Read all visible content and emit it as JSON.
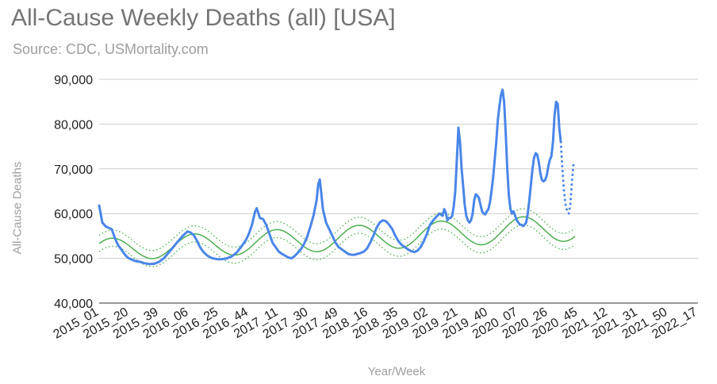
{
  "chart_data": {
    "type": "line",
    "title": "All-Cause Weekly Deaths (all) [USA]",
    "subtitle": "Source: CDC, USMortality.com",
    "xlabel": "Year/Week",
    "ylabel": "All-Cause Deaths",
    "ylim": [
      40000,
      90000
    ],
    "yticks": [
      "40,000",
      "50,000",
      "60,000",
      "70,000",
      "80,000",
      "90,000"
    ],
    "ytick_values": [
      40000,
      50000,
      60000,
      70000,
      80000,
      90000
    ],
    "x_start": "2015_01",
    "x_end": "2022_17",
    "x_tick_labels": [
      "2015_01",
      "2015_20",
      "2015_39",
      "2016_06",
      "2016_25",
      "2016_44",
      "2017_11",
      "2017_30",
      "2017_49",
      "2018_16",
      "2018_35",
      "2019_02",
      "2019_21",
      "2019_40",
      "2020_07",
      "2020_26",
      "2020_45",
      "2021_12",
      "2021_31",
      "2021_50",
      "2022_17"
    ],
    "x_tick_index": [
      0,
      19,
      38,
      57,
      76,
      95,
      114,
      133,
      152,
      171,
      190,
      209,
      228,
      247,
      266,
      285,
      304,
      323,
      342,
      361,
      380
    ],
    "grid": true,
    "legend": "none",
    "colors": {
      "actual": "#4a86e8",
      "baseline": "#4caf50",
      "grid": "#cccccc",
      "axis": "#333333"
    },
    "series": [
      {
        "style": "solid",
        "points": [
          [
            0,
            61800
          ],
          [
            2,
            58000
          ],
          [
            4,
            57200
          ],
          [
            6,
            56800
          ],
          [
            8,
            56500
          ],
          [
            10,
            54500
          ],
          [
            12,
            53000
          ],
          [
            14,
            52000
          ],
          [
            16,
            51000
          ],
          [
            18,
            50200
          ],
          [
            20,
            49800
          ],
          [
            23,
            49400
          ],
          [
            26,
            49200
          ],
          [
            29,
            48900
          ],
          [
            32,
            48700
          ],
          [
            35,
            48800
          ],
          [
            38,
            49200
          ],
          [
            41,
            50000
          ],
          [
            44,
            51200
          ],
          [
            47,
            52500
          ],
          [
            50,
            53800
          ],
          [
            53,
            55000
          ],
          [
            56,
            56000
          ],
          [
            58,
            55800
          ],
          [
            60,
            55200
          ],
          [
            62,
            54000
          ],
          [
            64,
            52500
          ],
          [
            66,
            51500
          ],
          [
            68,
            50800
          ],
          [
            70,
            50300
          ],
          [
            72,
            50000
          ],
          [
            75,
            49800
          ],
          [
            78,
            49800
          ],
          [
            81,
            50000
          ],
          [
            84,
            50400
          ],
          [
            87,
            51200
          ],
          [
            90,
            52500
          ],
          [
            93,
            54000
          ],
          [
            95,
            55500
          ],
          [
            97,
            57500
          ],
          [
            99,
            60500
          ],
          [
            100,
            61200
          ],
          [
            102,
            59000
          ],
          [
            104,
            58800
          ],
          [
            106,
            57500
          ],
          [
            108,
            55500
          ],
          [
            110,
            53500
          ],
          [
            112,
            52500
          ],
          [
            114,
            51500
          ],
          [
            116,
            51000
          ],
          [
            118,
            50600
          ],
          [
            120,
            50200
          ],
          [
            122,
            50000
          ],
          [
            124,
            50500
          ],
          [
            126,
            51200
          ],
          [
            128,
            52000
          ],
          [
            130,
            53200
          ],
          [
            132,
            54800
          ],
          [
            134,
            57000
          ],
          [
            136,
            59500
          ],
          [
            138,
            63000
          ],
          [
            139,
            66500
          ],
          [
            140,
            67600
          ],
          [
            141,
            64500
          ],
          [
            142,
            61000
          ],
          [
            144,
            58000
          ],
          [
            146,
            56500
          ],
          [
            148,
            55000
          ],
          [
            150,
            53500
          ],
          [
            152,
            52500
          ],
          [
            154,
            52000
          ],
          [
            156,
            51500
          ],
          [
            158,
            51000
          ],
          [
            160,
            50800
          ],
          [
            162,
            50800
          ],
          [
            164,
            51000
          ],
          [
            166,
            51200
          ],
          [
            168,
            51500
          ],
          [
            170,
            52200
          ],
          [
            172,
            53500
          ],
          [
            174,
            55000
          ],
          [
            176,
            56800
          ],
          [
            178,
            58000
          ],
          [
            180,
            58500
          ],
          [
            182,
            58300
          ],
          [
            184,
            57500
          ],
          [
            186,
            56500
          ],
          [
            188,
            55000
          ],
          [
            190,
            53800
          ],
          [
            192,
            53000
          ],
          [
            194,
            52500
          ],
          [
            196,
            52000
          ],
          [
            198,
            51600
          ],
          [
            200,
            51400
          ],
          [
            202,
            51700
          ],
          [
            204,
            52500
          ],
          [
            206,
            53800
          ],
          [
            208,
            55500
          ],
          [
            210,
            57500
          ],
          [
            212,
            58500
          ],
          [
            214,
            59300
          ],
          [
            216,
            60000
          ],
          [
            218,
            59500
          ],
          [
            219,
            61000
          ],
          [
            220,
            60200
          ],
          [
            221,
            58500
          ],
          [
            222,
            59000
          ],
          [
            223,
            59000
          ],
          [
            224,
            59500
          ],
          [
            225,
            61500
          ],
          [
            226,
            65000
          ],
          [
            227,
            72000
          ],
          [
            228,
            79200
          ],
          [
            229,
            76000
          ],
          [
            230,
            70000
          ],
          [
            231,
            66000
          ],
          [
            232,
            62000
          ],
          [
            233,
            59500
          ],
          [
            234,
            58500
          ],
          [
            235,
            58000
          ],
          [
            236,
            58500
          ],
          [
            237,
            60000
          ],
          [
            238,
            63000
          ],
          [
            239,
            64300
          ],
          [
            240,
            64000
          ],
          [
            241,
            63500
          ],
          [
            242,
            62000
          ],
          [
            243,
            60500
          ],
          [
            244,
            60000
          ],
          [
            245,
            59800
          ],
          [
            246,
            60500
          ],
          [
            247,
            61000
          ],
          [
            248,
            62500
          ],
          [
            249,
            65000
          ],
          [
            250,
            68000
          ],
          [
            251,
            72000
          ],
          [
            252,
            76000
          ],
          [
            253,
            81000
          ],
          [
            254,
            84000
          ],
          [
            255,
            86500
          ],
          [
            256,
            87700
          ],
          [
            257,
            85000
          ],
          [
            258,
            78000
          ],
          [
            259,
            70000
          ],
          [
            260,
            64000
          ],
          [
            261,
            61000
          ],
          [
            262,
            60000
          ],
          [
            263,
            60500
          ],
          [
            264,
            59500
          ],
          [
            265,
            58500
          ],
          [
            266,
            58000
          ],
          [
            267,
            57500
          ],
          [
            268,
            57500
          ],
          [
            269,
            57200
          ],
          [
            270,
            57500
          ],
          [
            271,
            58000
          ],
          [
            272,
            60000
          ],
          [
            273,
            63000
          ],
          [
            274,
            66500
          ],
          [
            275,
            70000
          ],
          [
            276,
            72500
          ],
          [
            277,
            73500
          ],
          [
            278,
            73200
          ],
          [
            279,
            71500
          ],
          [
            280,
            69000
          ],
          [
            281,
            67500
          ],
          [
            282,
            67200
          ],
          [
            283,
            67500
          ],
          [
            284,
            68500
          ],
          [
            285,
            70500
          ],
          [
            286,
            72000
          ],
          [
            287,
            72800
          ],
          [
            288,
            76000
          ],
          [
            289,
            82000
          ],
          [
            290,
            85000
          ],
          [
            291,
            84500
          ],
          [
            292,
            79000
          ],
          [
            293,
            76000
          ]
        ]
      },
      {
        "style": "dotted",
        "points": [
          [
            293,
            76000
          ],
          [
            294,
            70000
          ],
          [
            295,
            65000
          ],
          [
            296,
            62000
          ],
          [
            297,
            60500
          ],
          [
            298,
            60000
          ],
          [
            299,
            62000
          ],
          [
            300,
            67000
          ],
          [
            301,
            71000
          ],
          [
            302,
            70500
          ]
        ]
      },
      {
        "style": "baseline",
        "period": 52.18,
        "peak_index": 8,
        "center_start": 51900,
        "center_end": 56900,
        "amplitude_start": 2450,
        "amplitude_end": 3000,
        "band_offset": 1800
      }
    ]
  }
}
